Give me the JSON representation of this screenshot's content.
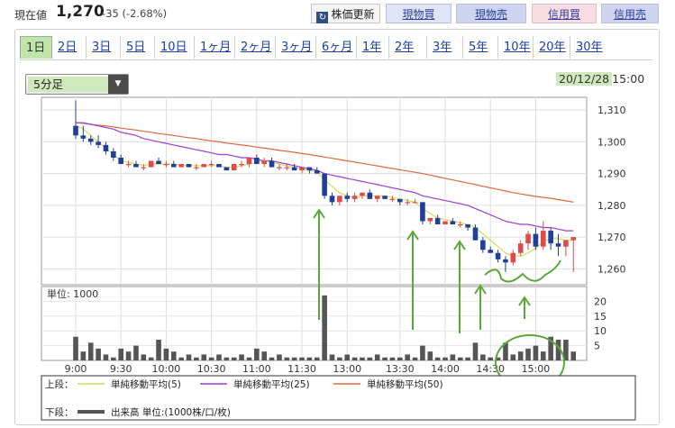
{
  "quote": {
    "price_label": "現在値",
    "price": "1,270",
    "change": "-35 (-2.68%)"
  },
  "toolbar": {
    "refresh_label": "株価更新",
    "refresh_icon": "refresh-icon",
    "buy_stock": "現物買",
    "sell_stock": "現物売",
    "buy_credit": "信用買",
    "sell_credit": "信用売"
  },
  "tabs": [
    "1日",
    "2日",
    "3日",
    "5日",
    "10日",
    "1ヶ月",
    "2ヶ月",
    "3ヶ月",
    "6ヶ月",
    "1年",
    "2年",
    "3年",
    "5年",
    "10年",
    "20年",
    "30年"
  ],
  "active_tab": "1日",
  "interval": {
    "selected": "5分足"
  },
  "datetime": {
    "date": "20/12/28",
    "time": "15:00"
  },
  "chart_data": {
    "type": "candlestick",
    "price_axis": {
      "ticks": [
        1310,
        1300,
        1290,
        1280,
        1270,
        1260
      ],
      "labels": [
        "1,310",
        "1,300",
        "1,290",
        "1,280",
        "1,270",
        "1,260"
      ],
      "range": [
        1255,
        1314
      ]
    },
    "volume_axis": {
      "unit_label": "単位: 1000",
      "ticks": [
        20,
        15,
        10,
        5
      ],
      "range": [
        0,
        25
      ]
    },
    "x_labels": [
      "9:00",
      "9:30",
      "10:00",
      "10:30",
      "11:00",
      "11:30",
      "13:00",
      "13:30",
      "14:00",
      "14:30",
      "15:00"
    ],
    "colors": {
      "up": "#e04a4a",
      "down": "#1f3f9a",
      "ma5": "#cfdd5a",
      "ma25": "#9a3fd6",
      "ma50": "#e0693c",
      "volume": "#555555",
      "annotation": "#5aa83a"
    },
    "candles": [
      [
        1305,
        1313,
        1301,
        1302
      ],
      [
        1302,
        1305,
        1300,
        1301
      ],
      [
        1301,
        1302,
        1299,
        1300
      ],
      [
        1300,
        1302,
        1298,
        1299
      ],
      [
        1299,
        1300,
        1296,
        1297
      ],
      [
        1297,
        1298,
        1294,
        1295
      ],
      [
        1295,
        1296,
        1293,
        1293
      ],
      [
        1293,
        1294,
        1292,
        1293
      ],
      [
        1293,
        1294,
        1292,
        1292
      ],
      [
        1292,
        1293,
        1291,
        1292
      ],
      [
        1292,
        1294,
        1292,
        1294
      ],
      [
        1294,
        1295,
        1293,
        1293
      ],
      [
        1293,
        1294,
        1292,
        1293
      ],
      [
        1293,
        1294,
        1292,
        1292
      ],
      [
        1292,
        1293,
        1292,
        1293
      ],
      [
        1293,
        1293,
        1292,
        1292
      ],
      [
        1292,
        1293,
        1291,
        1292
      ],
      [
        1292,
        1293,
        1292,
        1293
      ],
      [
        1293,
        1294,
        1292,
        1293
      ],
      [
        1293,
        1293,
        1292,
        1292
      ],
      [
        1292,
        1292,
        1291,
        1291
      ],
      [
        1291,
        1293,
        1291,
        1293
      ],
      [
        1293,
        1294,
        1292,
        1293
      ],
      [
        1293,
        1295,
        1292,
        1295
      ],
      [
        1295,
        1296,
        1293,
        1293
      ],
      [
        1293,
        1295,
        1292,
        1294
      ],
      [
        1294,
        1295,
        1292,
        1292
      ],
      [
        1292,
        1293,
        1291,
        1292
      ],
      [
        1292,
        1293,
        1291,
        1292
      ],
      [
        1292,
        1293,
        1291,
        1291
      ],
      [
        1291,
        1292,
        1290,
        1292
      ],
      [
        1292,
        1292,
        1290,
        1291
      ],
      [
        1291,
        1292,
        1290,
        1290
      ],
      [
        1290,
        1290,
        1282,
        1283
      ],
      [
        1283,
        1284,
        1280,
        1281
      ],
      [
        1281,
        1283,
        1280,
        1283
      ],
      [
        1283,
        1284,
        1281,
        1282
      ],
      [
        1282,
        1284,
        1281,
        1283
      ],
      [
        1283,
        1284,
        1282,
        1284
      ],
      [
        1284,
        1285,
        1282,
        1282
      ],
      [
        1282,
        1283,
        1281,
        1283
      ],
      [
        1283,
        1283,
        1282,
        1282
      ],
      [
        1282,
        1283,
        1281,
        1282
      ],
      [
        1282,
        1282,
        1280,
        1281
      ],
      [
        1281,
        1282,
        1280,
        1281
      ],
      [
        1281,
        1282,
        1281,
        1281
      ],
      [
        1281,
        1281,
        1274,
        1275
      ],
      [
        1275,
        1276,
        1274,
        1276
      ],
      [
        1276,
        1277,
        1274,
        1274
      ],
      [
        1274,
        1275,
        1274,
        1275
      ],
      [
        1275,
        1276,
        1274,
        1274
      ],
      [
        1274,
        1275,
        1273,
        1274
      ],
      [
        1274,
        1274,
        1272,
        1273
      ],
      [
        1273,
        1274,
        1269,
        1269
      ],
      [
        1269,
        1270,
        1265,
        1266
      ],
      [
        1266,
        1267,
        1265,
        1265
      ],
      [
        1265,
        1266,
        1262,
        1263
      ],
      [
        1263,
        1264,
        1259,
        1262
      ],
      [
        1262,
        1266,
        1261,
        1265
      ],
      [
        1265,
        1269,
        1264,
        1268
      ],
      [
        1268,
        1272,
        1266,
        1271
      ],
      [
        1271,
        1273,
        1266,
        1267
      ],
      [
        1267,
        1275,
        1266,
        1272
      ],
      [
        1272,
        1273,
        1266,
        1268
      ],
      [
        1268,
        1271,
        1264,
        1267
      ],
      [
        1267,
        1269,
        1264,
        1269
      ],
      [
        1269,
        1270,
        1259,
        1270
      ]
    ],
    "volumes": [
      8,
      3,
      6,
      4,
      2,
      1,
      4,
      3,
      5,
      2,
      1,
      7,
      4,
      3,
      1,
      2,
      1,
      2,
      1,
      2,
      1,
      1,
      2,
      1,
      4,
      3,
      1,
      2,
      1,
      1,
      1,
      1,
      1,
      22,
      2,
      1,
      2,
      1,
      1,
      1,
      2,
      1,
      1,
      1,
      2,
      1,
      5,
      3,
      1,
      1,
      2,
      1,
      1,
      6,
      2,
      1,
      1,
      6,
      2,
      3,
      4,
      5,
      3,
      8,
      7,
      7,
      3
    ],
    "ma5": [
      1305,
      1304,
      1302,
      1300,
      1298,
      1296,
      1294,
      1293.5,
      1293,
      1292.5,
      1293,
      1293,
      1293,
      1293,
      1292.5,
      1292.5,
      1292.5,
      1292.5,
      1292.5,
      1292.5,
      1292,
      1292,
      1292.5,
      1293,
      1293.5,
      1294,
      1293.5,
      1293,
      1292.5,
      1292,
      1291.5,
      1291,
      1290.5,
      1288,
      1286,
      1284,
      1283,
      1282.5,
      1283,
      1283,
      1283,
      1283,
      1282.5,
      1282,
      1281.5,
      1281,
      1279,
      1277.5,
      1276,
      1275.5,
      1275,
      1274.5,
      1274,
      1273,
      1271,
      1269,
      1267,
      1265,
      1264,
      1264,
      1265,
      1266.5,
      1268.5,
      1269.5,
      1269.5,
      1269,
      1269
    ],
    "ma25": [
      1306,
      1306,
      1305.5,
      1305,
      1304.5,
      1304,
      1303,
      1302.5,
      1302,
      1301,
      1300.5,
      1300,
      1299.5,
      1299,
      1298.5,
      1298,
      1297.5,
      1297,
      1296.5,
      1296,
      1296,
      1295.5,
      1295,
      1295,
      1294.5,
      1294,
      1294,
      1293.5,
      1293,
      1292.5,
      1292,
      1291.5,
      1291,
      1290,
      1289.5,
      1289,
      1288.5,
      1288,
      1287.5,
      1287,
      1286.5,
      1286,
      1285.5,
      1285,
      1284.5,
      1284,
      1283,
      1282.5,
      1282,
      1281.5,
      1281,
      1280.5,
      1280,
      1279,
      1278,
      1277,
      1276,
      1275,
      1274.5,
      1274,
      1274,
      1273.5,
      1273,
      1273,
      1272.5,
      1272,
      1272
    ],
    "ma50": [
      1306,
      1305.8,
      1305.5,
      1305.2,
      1305,
      1304.7,
      1304.3,
      1304,
      1303.7,
      1303.3,
      1303,
      1302.6,
      1302.3,
      1302,
      1301.6,
      1301.3,
      1301,
      1300.6,
      1300.3,
      1300,
      1299.6,
      1299.3,
      1299,
      1298.7,
      1298.3,
      1298,
      1297.7,
      1297.3,
      1297,
      1296.7,
      1296.3,
      1296,
      1295.6,
      1295.2,
      1294.8,
      1294.4,
      1294,
      1293.6,
      1293.2,
      1292.8,
      1292.4,
      1292,
      1291.6,
      1291.2,
      1290.8,
      1290.4,
      1290,
      1289.5,
      1289,
      1288.5,
      1288,
      1287.5,
      1287,
      1286.5,
      1286,
      1285.5,
      1285,
      1284.5,
      1284,
      1283.6,
      1283.2,
      1282.8,
      1282.5,
      1282.2,
      1281.8,
      1281.4,
      1281
    ]
  },
  "legend": {
    "upper_label": "上段：",
    "lower_label": "下段：",
    "ma5": "単純移動平均(5)",
    "ma25": "単純移動平均(25)",
    "ma50": "単純移動平均(50)",
    "volume": "出来高 単位:(1000株/口/枚)"
  }
}
